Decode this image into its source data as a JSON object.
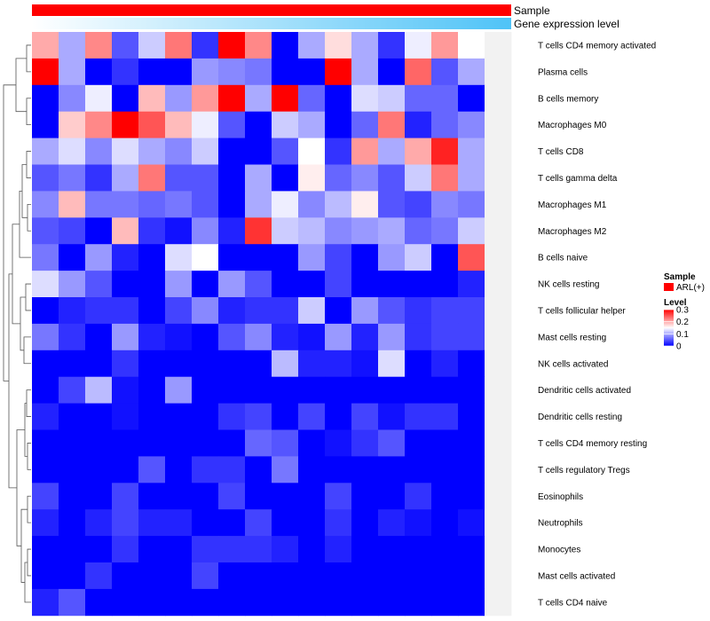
{
  "chart_data": {
    "type": "heatmap",
    "title": "",
    "annotations": [
      {
        "name": "Sample",
        "style": "solid",
        "color": "#ff0000"
      },
      {
        "name": "Gene expression level",
        "style": "gradient",
        "color_low": "#ffffff",
        "color_high": "#4fc3f7"
      }
    ],
    "rows": [
      "T cells CD4 memory activated",
      "Plasma cells",
      "B cells memory",
      "Macrophages M0",
      "T cells CD8",
      "T cells gamma delta",
      "Macrophages M1",
      "Macrophages M2",
      "B cells naive",
      "NK cells resting",
      "T cells follicular helper",
      "Mast cells resting",
      "NK cells activated",
      "Dendritic cells activated",
      "Dendritic cells resting",
      "T cells CD4 memory resting",
      "T cells regulatory  Tregs",
      "Eosinophils",
      "Neutrophils",
      "Monocytes",
      "Mast cells activated",
      "T cells CD4 naive"
    ],
    "n_columns": 18,
    "values": [
      [
        0.2,
        0.1,
        0.22,
        0.05,
        0.12,
        0.23,
        0.03,
        0.3,
        0.22,
        0.0,
        0.1,
        0.17,
        0.1,
        0.03,
        0.14,
        0.21,
        0.15,
        null
      ],
      [
        0.3,
        0.1,
        0.0,
        0.03,
        0.0,
        0.0,
        0.09,
        0.08,
        0.07,
        0.0,
        0.0,
        0.3,
        0.1,
        0.0,
        0.24,
        0.05,
        0.1,
        null
      ],
      [
        0.0,
        0.08,
        0.14,
        0.0,
        0.19,
        0.09,
        0.21,
        0.3,
        0.1,
        0.3,
        0.06,
        0.0,
        0.13,
        0.12,
        0.06,
        0.06,
        0.0,
        null
      ],
      [
        0.0,
        0.18,
        0.22,
        0.3,
        0.25,
        0.19,
        0.14,
        0.05,
        0.0,
        0.12,
        0.1,
        0.0,
        0.06,
        0.23,
        0.02,
        0.06,
        0.08,
        null
      ],
      [
        0.1,
        0.13,
        0.08,
        0.13,
        0.1,
        0.08,
        0.12,
        0.0,
        0.0,
        0.05,
        0.15,
        0.03,
        0.21,
        0.1,
        0.2,
        0.28,
        0.1,
        null
      ],
      [
        0.05,
        0.07,
        0.03,
        0.1,
        0.23,
        0.05,
        0.05,
        0.0,
        0.1,
        0.0,
        0.16,
        0.06,
        0.08,
        0.05,
        0.12,
        0.23,
        0.1,
        null
      ],
      [
        0.08,
        0.19,
        0.07,
        0.07,
        0.06,
        0.07,
        0.05,
        0.0,
        0.1,
        0.14,
        0.08,
        0.11,
        0.16,
        0.05,
        0.04,
        0.08,
        0.07,
        null
      ],
      [
        0.05,
        0.04,
        0.0,
        0.19,
        0.03,
        0.01,
        0.08,
        0.02,
        0.27,
        0.12,
        0.11,
        0.08,
        0.09,
        0.1,
        0.06,
        0.07,
        0.12,
        null
      ],
      [
        0.07,
        0.0,
        0.09,
        0.02,
        0.0,
        0.13,
        0.15,
        0.0,
        0.0,
        0.0,
        0.09,
        0.04,
        0.0,
        0.09,
        0.12,
        0.0,
        0.25,
        null
      ],
      [
        0.13,
        0.09,
        0.05,
        0.0,
        0.0,
        0.09,
        0.0,
        0.09,
        0.05,
        0.0,
        0.0,
        0.04,
        0.0,
        0.0,
        0.0,
        0.0,
        0.02,
        null
      ],
      [
        0.0,
        0.02,
        0.03,
        0.03,
        0.0,
        0.04,
        0.08,
        0.02,
        0.03,
        0.03,
        0.12,
        0.0,
        0.09,
        0.05,
        0.03,
        0.04,
        0.04,
        null
      ],
      [
        0.07,
        0.03,
        0.0,
        0.09,
        0.02,
        0.01,
        0.0,
        0.05,
        0.08,
        0.02,
        0.01,
        0.09,
        0.02,
        0.09,
        0.03,
        0.04,
        0.04,
        null
      ],
      [
        0.0,
        0.0,
        0.0,
        0.03,
        0.0,
        0.0,
        0.0,
        0.0,
        0.0,
        0.11,
        0.02,
        0.02,
        0.01,
        0.13,
        0.0,
        0.02,
        0.0,
        null
      ],
      [
        0.0,
        0.04,
        0.11,
        0.01,
        0.0,
        0.09,
        0.0,
        0.0,
        0.0,
        0.0,
        0.0,
        0.0,
        0.0,
        0.0,
        0.0,
        0.0,
        0.0,
        null
      ],
      [
        0.02,
        0.0,
        0.0,
        0.01,
        0.0,
        0.0,
        0.0,
        0.03,
        0.04,
        0.0,
        0.04,
        0.0,
        0.04,
        0.01,
        0.03,
        0.03,
        0.0,
        null
      ],
      [
        0.0,
        0.0,
        0.0,
        0.0,
        0.0,
        0.0,
        0.0,
        0.0,
        0.06,
        0.05,
        0.0,
        0.01,
        0.03,
        0.05,
        0.0,
        0.0,
        0.0,
        null
      ],
      [
        0.0,
        0.0,
        0.0,
        0.0,
        0.05,
        0.0,
        0.03,
        0.03,
        0.0,
        0.07,
        0.0,
        0.0,
        0.0,
        0.0,
        0.0,
        0.0,
        0.0,
        null
      ],
      [
        0.04,
        0.0,
        0.0,
        0.04,
        0.0,
        0.0,
        0.0,
        0.04,
        0.0,
        0.0,
        0.0,
        0.04,
        0.0,
        0.0,
        0.03,
        0.0,
        0.0,
        null
      ],
      [
        0.02,
        0.0,
        0.02,
        0.04,
        0.02,
        0.02,
        0.0,
        0.0,
        0.04,
        0.0,
        0.0,
        0.03,
        0.0,
        0.02,
        0.01,
        0.0,
        0.01,
        null
      ],
      [
        0.0,
        0.0,
        0.0,
        0.03,
        0.0,
        0.0,
        0.03,
        0.03,
        0.03,
        0.02,
        0.0,
        0.02,
        0.0,
        0.0,
        0.0,
        0.0,
        0.0,
        null
      ],
      [
        0.0,
        0.0,
        0.03,
        0.0,
        0.0,
        0.0,
        0.04,
        0.0,
        0.0,
        0.0,
        0.0,
        0.0,
        0.0,
        0.0,
        0.0,
        0.0,
        0.0,
        null
      ],
      [
        0.02,
        0.05,
        0.0,
        0.0,
        0.0,
        0.0,
        0.0,
        0.0,
        0.0,
        0.0,
        0.0,
        0.0,
        0.0,
        0.0,
        0.0,
        0.0,
        0.0,
        null
      ]
    ],
    "color_scale": {
      "min": 0,
      "max": 0.3,
      "low": "#0000ff",
      "mid": "#ffffff",
      "high": "#ff0000",
      "mid_value": 0.15
    },
    "legend": {
      "sample_title": "Sample",
      "sample_item": "ARL(+)",
      "level_title": "Level",
      "level_ticks": [
        "0.3",
        "0.2",
        "0.1",
        "0"
      ],
      "position": "right"
    }
  }
}
